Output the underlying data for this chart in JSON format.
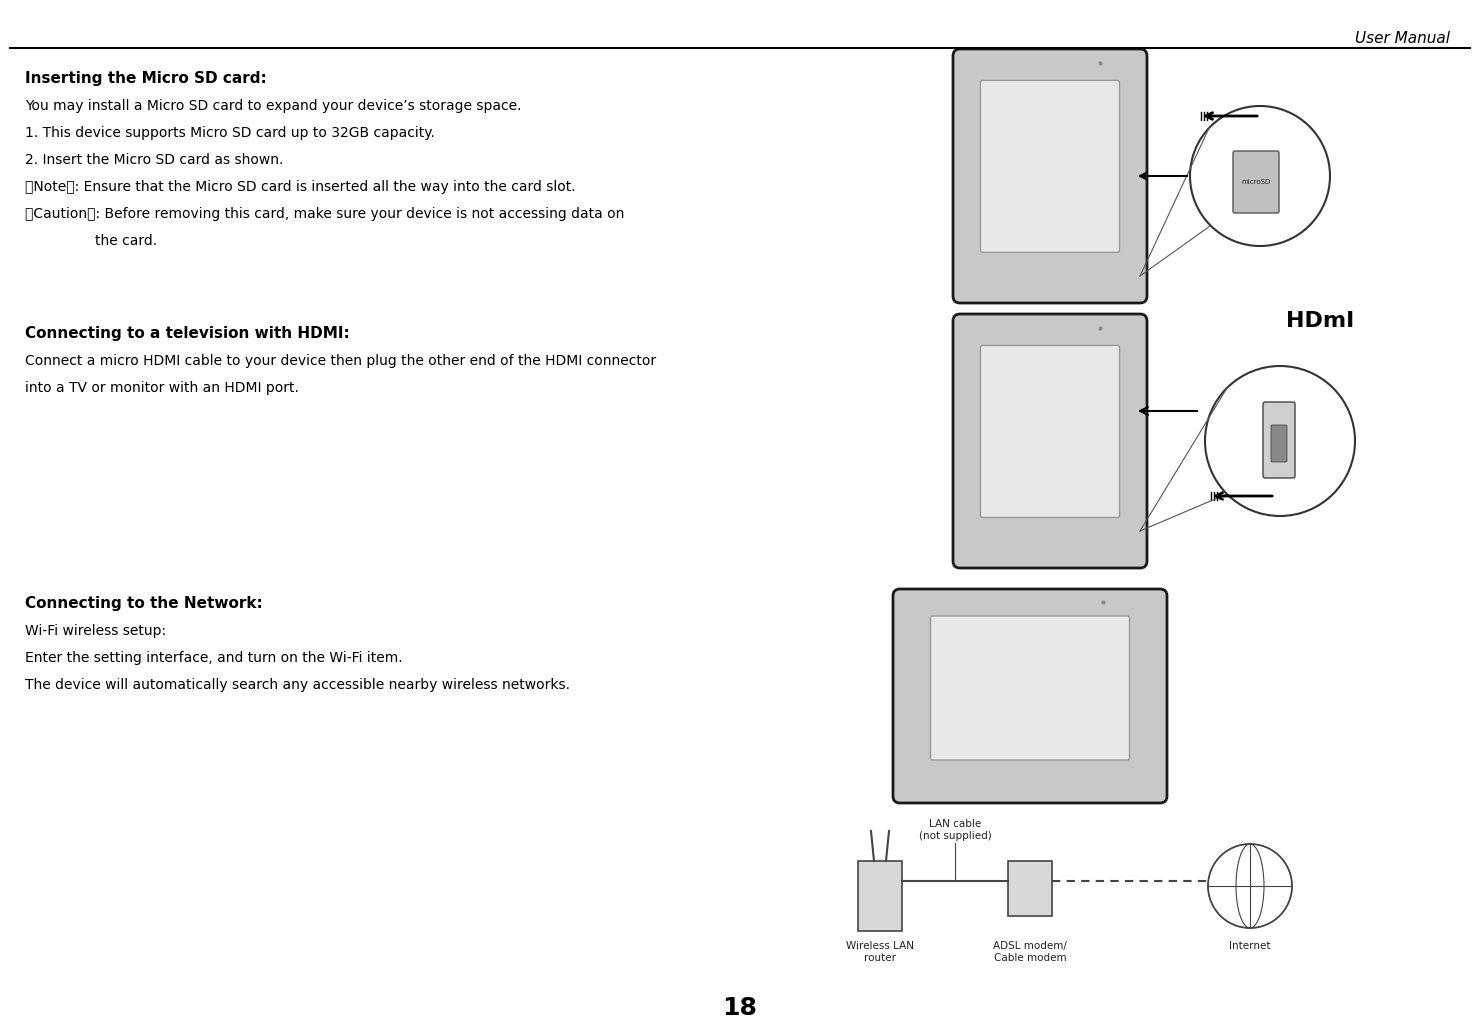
{
  "page_title": "User Manual",
  "page_number": "18",
  "background_color": "#ffffff",
  "title_color": "#000000",
  "text_color": "#000000",
  "header_line_color": "#000000",
  "section1_title": "Inserting the Micro SD card:",
  "section1_lines": [
    "You may install a Micro SD card to expand your device’s storage space.",
    "1. This device supports Micro SD card up to 32GB capacity.",
    "2. Insert the Micro SD card as shown.",
    "【Note】: Ensure that the Micro SD card is inserted all the way into the card slot.",
    "【Caution】: Before removing this card, make sure your device is not accessing data on",
    "                the card."
  ],
  "section2_title": "Connecting to a television with HDMI:",
  "section2_lines": [
    "Connect a micro HDMI cable to your device then plug the other end of the HDMI connector",
    "into a TV or monitor with an HDMI port."
  ],
  "section3_title": "Connecting to the Network:",
  "section3_lines": [
    "Wi-Fi wireless setup:",
    "Enter the setting interface, and turn on the Wi-Fi item.",
    "The device will automatically search any accessible nearby wireless networks."
  ],
  "diagram1_label": "microSD",
  "diagram2_label": "HDmI",
  "diagram3_labels": [
    "LAN cable\n(not supplied)",
    "Wireless LAN\nrouter",
    "ADSL modem/\nCable modem",
    "Internet"
  ],
  "tablet_fill": "#c8c8c8",
  "tablet_border": "#333333",
  "tablet_screen": "#e8e8e8",
  "tablet_dark": "#1a1a1a"
}
